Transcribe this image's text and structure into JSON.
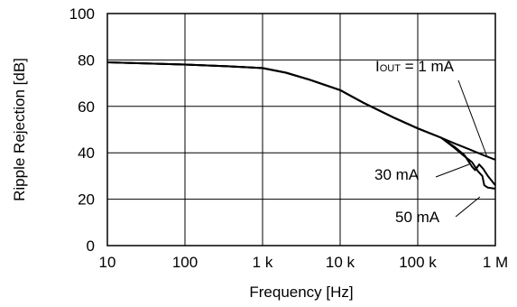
{
  "chart_data": {
    "type": "line",
    "title": "",
    "xlabel": "Frequency [Hz]",
    "ylabel": "Ripple Rejection [dB]",
    "x_scale": "log",
    "xlim": [
      10,
      1000000
    ],
    "ylim": [
      0,
      100
    ],
    "grid": true,
    "x_ticks": [
      {
        "value": 10,
        "label": "10"
      },
      {
        "value": 100,
        "label": "100"
      },
      {
        "value": 1000,
        "label": "1 k"
      },
      {
        "value": 10000,
        "label": "10 k"
      },
      {
        "value": 100000,
        "label": "100 k"
      },
      {
        "value": 1000000,
        "label": "1 M"
      }
    ],
    "y_ticks": [
      {
        "value": 0,
        "label": "0"
      },
      {
        "value": 20,
        "label": "20"
      },
      {
        "value": 40,
        "label": "40"
      },
      {
        "value": 60,
        "label": "60"
      },
      {
        "value": 80,
        "label": "80"
      },
      {
        "value": 100,
        "label": "100"
      }
    ],
    "series": [
      {
        "name": "IOUT = 1 mA",
        "x": [
          10,
          100,
          400,
          1000,
          2000,
          4000,
          10000,
          20000,
          50000,
          100000,
          200000,
          300000,
          500000,
          700000,
          1000000
        ],
        "y": [
          79,
          78,
          77.2,
          76.5,
          74.5,
          71.5,
          67,
          61.5,
          55,
          50.5,
          46.5,
          44,
          41,
          39,
          37
        ]
      },
      {
        "name": "30 mA",
        "x": [
          10,
          100,
          400,
          1000,
          2000,
          4000,
          10000,
          20000,
          50000,
          100000,
          200000,
          300000,
          400000,
          500000,
          550000,
          620000,
          700000,
          800000,
          1000000
        ],
        "y": [
          79,
          78,
          77.2,
          76.5,
          74.5,
          71.5,
          67,
          61.5,
          55,
          50.5,
          46.5,
          42.5,
          39,
          34,
          32.5,
          35,
          33,
          30,
          26
        ]
      },
      {
        "name": "50 mA",
        "x": [
          10,
          100,
          400,
          1000,
          2000,
          4000,
          10000,
          20000,
          50000,
          100000,
          200000,
          300000,
          400000,
          500000,
          600000,
          680000,
          720000,
          800000,
          1000000
        ],
        "y": [
          79,
          78,
          77.2,
          76.5,
          74.5,
          71.5,
          67,
          61.5,
          55,
          50.5,
          46.5,
          42,
          38.5,
          36,
          32,
          30,
          26,
          25,
          24.5
        ]
      }
    ],
    "annotations": [
      {
        "label_main": "I",
        "label_sub": "OUT",
        "label_rest": " = 1 mA",
        "target_series": 0
      },
      {
        "label_main": "30 mA",
        "target_series": 1
      },
      {
        "label_main": "50 mA",
        "target_series": 2
      }
    ]
  }
}
